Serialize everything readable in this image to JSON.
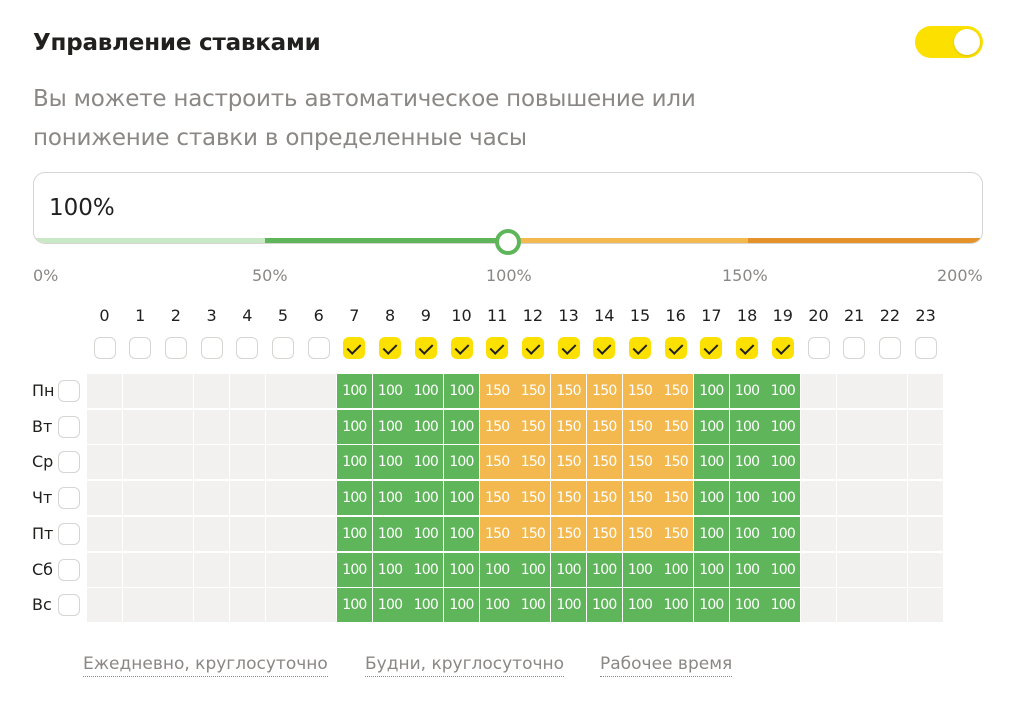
{
  "header": {
    "title": "Управление ставками",
    "toggle_on": true
  },
  "description": "Вы можете настроить автоматическое повышение или понижение ставки в определенные часы",
  "rate": {
    "value_text": "100%",
    "slider_value_percent": 100,
    "slider_min": 0,
    "slider_max": 200,
    "scale_labels": [
      "0%",
      "50%",
      "100%",
      "150%",
      "200%"
    ]
  },
  "colors": {
    "accent_yellow": "#fce000",
    "green": "#5fb55a",
    "orange": "#f3b94f",
    "light_green": "#c9e8c6",
    "dark_orange": "#e4922a",
    "empty_cell": "#f2f1f0"
  },
  "schedule": {
    "hours": [
      "0",
      "1",
      "2",
      "3",
      "4",
      "5",
      "6",
      "7",
      "8",
      "9",
      "10",
      "11",
      "12",
      "13",
      "14",
      "15",
      "16",
      "17",
      "18",
      "19",
      "20",
      "21",
      "22",
      "23"
    ],
    "hour_checked": [
      false,
      false,
      false,
      false,
      false,
      false,
      false,
      true,
      true,
      true,
      true,
      true,
      true,
      true,
      true,
      true,
      true,
      true,
      true,
      true,
      false,
      false,
      false,
      false
    ],
    "days": [
      {
        "label": "Пн",
        "checked": false,
        "values": [
          "",
          "",
          "",
          "",
          "",
          "",
          "",
          "100",
          "100",
          "100",
          "100",
          "150",
          "150",
          "150",
          "150",
          "150",
          "150",
          "100",
          "100",
          "100",
          "",
          "",
          "",
          ""
        ]
      },
      {
        "label": "Вт",
        "checked": false,
        "values": [
          "",
          "",
          "",
          "",
          "",
          "",
          "",
          "100",
          "100",
          "100",
          "100",
          "150",
          "150",
          "150",
          "150",
          "150",
          "150",
          "100",
          "100",
          "100",
          "",
          "",
          "",
          ""
        ]
      },
      {
        "label": "Ср",
        "checked": false,
        "values": [
          "",
          "",
          "",
          "",
          "",
          "",
          "",
          "100",
          "100",
          "100",
          "100",
          "150",
          "150",
          "150",
          "150",
          "150",
          "150",
          "100",
          "100",
          "100",
          "",
          "",
          "",
          ""
        ]
      },
      {
        "label": "Чт",
        "checked": false,
        "values": [
          "",
          "",
          "",
          "",
          "",
          "",
          "",
          "100",
          "100",
          "100",
          "100",
          "150",
          "150",
          "150",
          "150",
          "150",
          "150",
          "100",
          "100",
          "100",
          "",
          "",
          "",
          ""
        ]
      },
      {
        "label": "Пт",
        "checked": false,
        "values": [
          "",
          "",
          "",
          "",
          "",
          "",
          "",
          "100",
          "100",
          "100",
          "100",
          "150",
          "150",
          "150",
          "150",
          "150",
          "150",
          "100",
          "100",
          "100",
          "",
          "",
          "",
          ""
        ]
      },
      {
        "label": "Сб",
        "checked": false,
        "values": [
          "",
          "",
          "",
          "",
          "",
          "",
          "",
          "100",
          "100",
          "100",
          "100",
          "100",
          "100",
          "100",
          "100",
          "100",
          "100",
          "100",
          "100",
          "100",
          "",
          "",
          "",
          ""
        ]
      },
      {
        "label": "Вс",
        "checked": false,
        "values": [
          "",
          "",
          "",
          "",
          "",
          "",
          "",
          "100",
          "100",
          "100",
          "100",
          "100",
          "100",
          "100",
          "100",
          "100",
          "100",
          "100",
          "100",
          "100",
          "",
          "",
          "",
          ""
        ]
      }
    ]
  },
  "presets": [
    {
      "label": "Ежедневно, круглосуточно"
    },
    {
      "label": "Будни, круглосуточно"
    },
    {
      "label": "Рабочее время"
    }
  ]
}
